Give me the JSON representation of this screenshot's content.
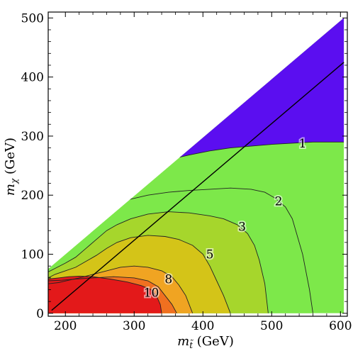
{
  "chart_data": {
    "type": "contour",
    "xlabel_parts": {
      "base": "m",
      "sub": "t̃",
      "unit": " (GeV)"
    },
    "ylabel_parts": {
      "base": "m",
      "sub": "χ",
      "unit": " (GeV)"
    },
    "xlim": [
      175,
      610
    ],
    "ylim": [
      -5,
      510
    ],
    "xticks": [
      200,
      300,
      400,
      500,
      600
    ],
    "yticks": [
      0,
      100,
      200,
      300,
      400,
      500
    ],
    "grid": false,
    "domain_polygon": [
      [
        175,
        0
      ],
      [
        175,
        75
      ],
      [
        605,
        500
      ],
      [
        605,
        0
      ]
    ],
    "fill_levels": [
      {
        "level": "<1",
        "color": "#5b0ef0",
        "boundary": [
          [
            212,
            188
          ],
          [
            230,
            205
          ],
          [
            250,
            215
          ],
          [
            270,
            222
          ],
          [
            290,
            230
          ],
          [
            310,
            240
          ],
          [
            330,
            250
          ],
          [
            350,
            260
          ],
          [
            380,
            268
          ],
          [
            410,
            275
          ],
          [
            440,
            280
          ],
          [
            470,
            283
          ],
          [
            500,
            286
          ],
          [
            530,
            288
          ],
          [
            560,
            290
          ],
          [
            605,
            290
          ]
        ]
      },
      {
        "level": "1-2",
        "color": "#7de84a",
        "boundary": [
          [
            175,
            78
          ],
          [
            185,
            86
          ],
          [
            195,
            98
          ],
          [
            205,
            110
          ],
          [
            215,
            125
          ],
          [
            225,
            140
          ],
          [
            235,
            155
          ],
          [
            245,
            165
          ],
          [
            255,
            175
          ],
          [
            270,
            185
          ],
          [
            290,
            192
          ],
          [
            320,
            200
          ],
          [
            350,
            205
          ],
          [
            380,
            208
          ],
          [
            410,
            210
          ],
          [
            440,
            212
          ],
          [
            470,
            210
          ],
          [
            490,
            205
          ],
          [
            505,
            195
          ],
          [
            520,
            180
          ],
          [
            530,
            160
          ],
          [
            545,
            100
          ],
          [
            555,
            40
          ],
          [
            560,
            0
          ]
        ]
      },
      {
        "level": "2-3",
        "color": "#a6d62c",
        "boundary": [
          [
            175,
            70
          ],
          [
            185,
            76
          ],
          [
            200,
            85
          ],
          [
            215,
            95
          ],
          [
            230,
            110
          ],
          [
            245,
            125
          ],
          [
            260,
            140
          ],
          [
            275,
            150
          ],
          [
            295,
            160
          ],
          [
            320,
            168
          ],
          [
            350,
            172
          ],
          [
            380,
            170
          ],
          [
            410,
            165
          ],
          [
            430,
            160
          ],
          [
            450,
            150
          ],
          [
            465,
            135
          ],
          [
            475,
            115
          ],
          [
            482,
            90
          ],
          [
            490,
            50
          ],
          [
            495,
            0
          ]
        ]
      },
      {
        "level": "3-5",
        "color": "#d4c418",
        "boundary": [
          [
            175,
            60
          ],
          [
            185,
            66
          ],
          [
            200,
            72
          ],
          [
            215,
            78
          ],
          [
            230,
            88
          ],
          [
            245,
            98
          ],
          [
            260,
            110
          ],
          [
            275,
            120
          ],
          [
            295,
            128
          ],
          [
            320,
            132
          ],
          [
            345,
            130
          ],
          [
            365,
            125
          ],
          [
            385,
            115
          ],
          [
            400,
            100
          ],
          [
            410,
            80
          ],
          [
            420,
            55
          ],
          [
            430,
            30
          ],
          [
            440,
            0
          ]
        ]
      },
      {
        "level": "5-8",
        "color": "#f0a422",
        "boundary": [
          [
            175,
            50
          ],
          [
            190,
            52
          ],
          [
            205,
            56
          ],
          [
            220,
            60
          ],
          [
            240,
            66
          ],
          [
            260,
            72
          ],
          [
            280,
            78
          ],
          [
            300,
            80
          ],
          [
            320,
            78
          ],
          [
            340,
            72
          ],
          [
            355,
            62
          ],
          [
            365,
            48
          ],
          [
            375,
            30
          ],
          [
            385,
            0
          ]
        ]
      },
      {
        "level": "8-10",
        "color": "#f07020",
        "boundary": [
          [
            175,
            55
          ],
          [
            195,
            56
          ],
          [
            215,
            58
          ],
          [
            240,
            60
          ],
          [
            270,
            62
          ],
          [
            300,
            60
          ],
          [
            320,
            55
          ],
          [
            335,
            45
          ],
          [
            345,
            30
          ],
          [
            355,
            15
          ],
          [
            362,
            0
          ]
        ]
      },
      {
        "level": ">10",
        "color": "#e3191a",
        "boundary": [
          [
            175,
            58
          ],
          [
            190,
            60
          ],
          [
            205,
            62
          ],
          [
            220,
            63
          ],
          [
            240,
            62
          ],
          [
            265,
            58
          ],
          [
            290,
            53
          ],
          [
            310,
            47
          ],
          [
            325,
            40
          ],
          [
            333,
            28
          ],
          [
            338,
            15
          ],
          [
            340,
            0
          ]
        ]
      }
    ],
    "contour_labels": [
      {
        "text": "1",
        "x": 545,
        "y": 288
      },
      {
        "text": "2",
        "x": 510,
        "y": 190
      },
      {
        "text": "3",
        "x": 457,
        "y": 147
      },
      {
        "text": "5",
        "x": 410,
        "y": 100
      },
      {
        "text": "8",
        "x": 350,
        "y": 58
      },
      {
        "text": "10",
        "x": 325,
        "y": 35
      }
    ],
    "diagonal_line": [
      [
        180,
        5
      ],
      [
        605,
        425
      ]
    ]
  }
}
